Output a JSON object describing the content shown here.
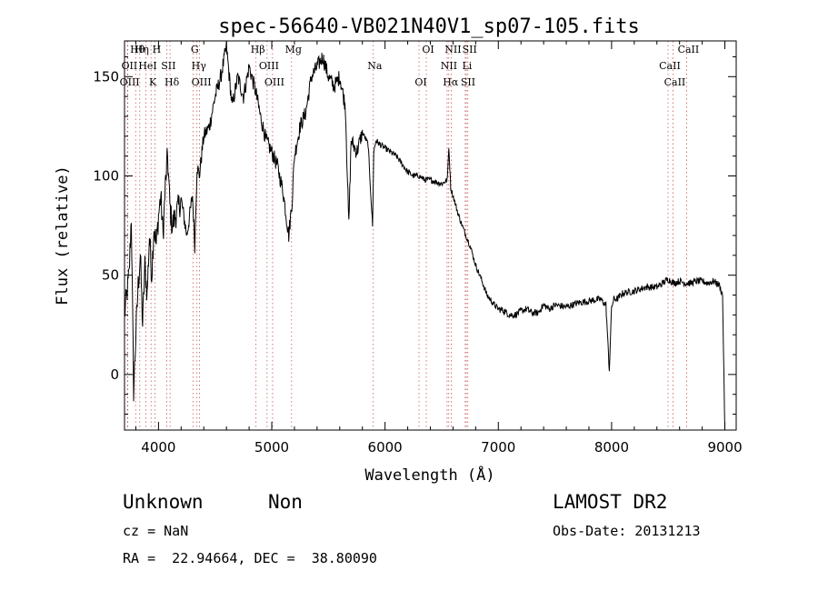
{
  "chart_data": {
    "type": "line",
    "title": "spec-56640-VB021N40V1_sp07-105.fits",
    "xlabel": "Wavelength (Å)",
    "ylabel": "Flux (relative)",
    "xlim": [
      3700,
      9100
    ],
    "ylim": [
      -28,
      168
    ],
    "xticks": [
      4000,
      5000,
      6000,
      7000,
      8000,
      9000
    ],
    "yticks": [
      0,
      50,
      100,
      150
    ],
    "grid": false,
    "series": [
      {
        "x": [
          3700,
          3720,
          3740,
          3760,
          3780,
          3800,
          3820,
          3840,
          3860,
          3880,
          3900,
          3920,
          3940,
          3960,
          3980,
          4000,
          4020,
          4040,
          4060,
          4080,
          4100,
          4120,
          4150,
          4200,
          4250,
          4300,
          4320,
          4340,
          4360,
          4400,
          4450,
          4500,
          4550,
          4600,
          4650,
          4700,
          4750,
          4800,
          4860,
          4900,
          4950,
          5000,
          5050,
          5100,
          5150,
          5180,
          5200,
          5250,
          5300,
          5350,
          5400,
          5450,
          5500,
          5550,
          5600,
          5650,
          5680,
          5700,
          5750,
          5800,
          5850,
          5890,
          5900,
          5920,
          5950,
          6000,
          6050,
          6100,
          6150,
          6200,
          6250,
          6300,
          6350,
          6400,
          6450,
          6500,
          6550,
          6563,
          6580,
          6600,
          6650,
          6700,
          6750,
          6800,
          6850,
          6900,
          6950,
          7000,
          7050,
          7100,
          7150,
          7200,
          7250,
          7300,
          7350,
          7400,
          7450,
          7500,
          7600,
          7700,
          7800,
          7900,
          7950,
          7980,
          8000,
          8020,
          8050,
          8100,
          8200,
          8300,
          8400,
          8450,
          8500,
          8550,
          8600,
          8650,
          8700,
          8750,
          8800,
          8850,
          8900,
          8950,
          8980,
          9000
        ],
        "y": [
          30,
          40,
          50,
          80,
          -8,
          20,
          45,
          60,
          25,
          55,
          40,
          70,
          50,
          75,
          65,
          80,
          90,
          70,
          95,
          110,
          85,
          75,
          80,
          88,
          70,
          90,
          65,
          105,
          100,
          120,
          125,
          140,
          150,
          165,
          135,
          150,
          140,
          155,
          142,
          130,
          118,
          112,
          105,
          92,
          70,
          88,
          110,
          125,
          132,
          150,
          155,
          160,
          150,
          145,
          150,
          135,
          75,
          118,
          112,
          122,
          116,
          75,
          112,
          118,
          116,
          114,
          112,
          110,
          106,
          102,
          100,
          100,
          98,
          98,
          97,
          96,
          98,
          115,
          94,
          90,
          80,
          72,
          65,
          55,
          48,
          40,
          36,
          33,
          32,
          30,
          30,
          32,
          33,
          31,
          31,
          35,
          33,
          35,
          34,
          36,
          37,
          38,
          35,
          2,
          34,
          38,
          38,
          41,
          42,
          44,
          44,
          46,
          48,
          46,
          47,
          46,
          46,
          47,
          47,
          46,
          47,
          45,
          40,
          -28
        ]
      }
    ],
    "line_markers": [
      {
        "x": 3798,
        "label": "Hθ"
      },
      {
        "x": 3727,
        "label": "OII"
      },
      {
        "x": 3729,
        "label": "OIII"
      },
      {
        "x": 3835,
        "label": "Hη"
      },
      {
        "x": 3889,
        "label": "HeI"
      },
      {
        "x": 3934,
        "label": "K"
      },
      {
        "x": 3968,
        "label": "H"
      },
      {
        "x": 4072,
        "label": "SII"
      },
      {
        "x": 4102,
        "label": "Hδ"
      },
      {
        "x": 4304,
        "label": "G"
      },
      {
        "x": 4340,
        "label": "Hγ"
      },
      {
        "x": 4363,
        "label": "OIII"
      },
      {
        "x": 4861,
        "label": "Hβ"
      },
      {
        "x": 4959,
        "label": "OIII"
      },
      {
        "x": 5007,
        "label": "OIII"
      },
      {
        "x": 5175,
        "label": "Mg"
      },
      {
        "x": 5893,
        "label": "Na"
      },
      {
        "x": 6300,
        "label": "OI"
      },
      {
        "x": 6364,
        "label": "OI"
      },
      {
        "x": 6548,
        "label": "NII"
      },
      {
        "x": 6563,
        "label": "Hα"
      },
      {
        "x": 6584,
        "label": "NII"
      },
      {
        "x": 6708,
        "label": "Li"
      },
      {
        "x": 6717,
        "label": "SII"
      },
      {
        "x": 6731,
        "label": "SII"
      },
      {
        "x": 8498,
        "label": "CaII"
      },
      {
        "x": 8542,
        "label": "CaII"
      },
      {
        "x": 8662,
        "label": "CaII"
      }
    ]
  },
  "info": {
    "class_label": "Unknown",
    "subclass_label": "Non",
    "cz": "cz = NaN",
    "radec": "RA =  22.94664, DEC =  38.80090",
    "survey": "LAMOST DR2",
    "obsdate": "Obs-Date: 20131213"
  }
}
